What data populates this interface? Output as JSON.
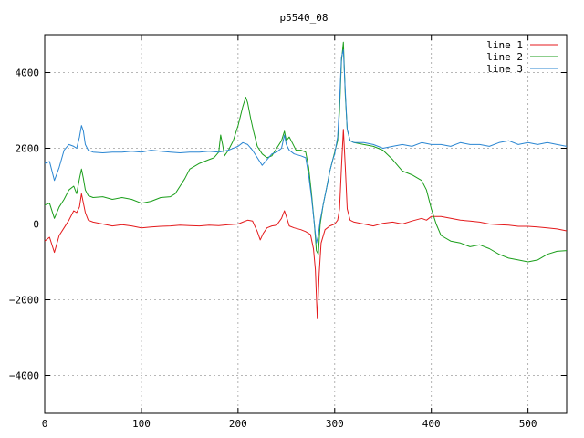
{
  "chart_data": {
    "type": "line",
    "title": "p5540_08",
    "xlabel": "",
    "ylabel": "",
    "xlim": [
      0,
      540
    ],
    "ylim": [
      -5000,
      5000
    ],
    "x_ticks": [
      0,
      100,
      200,
      300,
      400,
      500
    ],
    "y_ticks": [
      -4000,
      -2000,
      0,
      2000,
      4000
    ],
    "grid": true,
    "legend_position": "top-right",
    "series": [
      {
        "name": "line 1",
        "color": "#e41a1c",
        "points": [
          [
            0,
            -450
          ],
          [
            5,
            -350
          ],
          [
            10,
            -750
          ],
          [
            15,
            -300
          ],
          [
            20,
            -100
          ],
          [
            25,
            100
          ],
          [
            30,
            350
          ],
          [
            33,
            300
          ],
          [
            36,
            450
          ],
          [
            38,
            800
          ],
          [
            40,
            550
          ],
          [
            42,
            300
          ],
          [
            45,
            100
          ],
          [
            50,
            50
          ],
          [
            60,
            0
          ],
          [
            70,
            -50
          ],
          [
            80,
            -20
          ],
          [
            90,
            -50
          ],
          [
            100,
            -100
          ],
          [
            110,
            -80
          ],
          [
            120,
            -60
          ],
          [
            130,
            -50
          ],
          [
            140,
            -30
          ],
          [
            150,
            -40
          ],
          [
            160,
            -50
          ],
          [
            170,
            -30
          ],
          [
            180,
            -40
          ],
          [
            190,
            -20
          ],
          [
            200,
            0
          ],
          [
            205,
            50
          ],
          [
            210,
            100
          ],
          [
            215,
            80
          ],
          [
            220,
            -200
          ],
          [
            223,
            -420
          ],
          [
            226,
            -250
          ],
          [
            230,
            -100
          ],
          [
            235,
            -50
          ],
          [
            240,
            -30
          ],
          [
            245,
            150
          ],
          [
            248,
            350
          ],
          [
            250,
            200
          ],
          [
            253,
            -50
          ],
          [
            258,
            -100
          ],
          [
            265,
            -150
          ],
          [
            270,
            -200
          ],
          [
            275,
            -280
          ],
          [
            278,
            -650
          ],
          [
            280,
            -1200
          ],
          [
            282,
            -2500
          ],
          [
            284,
            -1300
          ],
          [
            286,
            -500
          ],
          [
            290,
            -150
          ],
          [
            295,
            -50
          ],
          [
            300,
            0
          ],
          [
            303,
            100
          ],
          [
            305,
            400
          ],
          [
            307,
            1500
          ],
          [
            309,
            2500
          ],
          [
            311,
            1500
          ],
          [
            313,
            400
          ],
          [
            316,
            100
          ],
          [
            320,
            50
          ],
          [
            330,
            0
          ],
          [
            340,
            -50
          ],
          [
            350,
            20
          ],
          [
            360,
            50
          ],
          [
            370,
            0
          ],
          [
            380,
            80
          ],
          [
            390,
            150
          ],
          [
            395,
            100
          ],
          [
            400,
            200
          ],
          [
            410,
            200
          ],
          [
            420,
            150
          ],
          [
            430,
            100
          ],
          [
            440,
            80
          ],
          [
            450,
            50
          ],
          [
            460,
            0
          ],
          [
            470,
            -20
          ],
          [
            480,
            -30
          ],
          [
            490,
            -60
          ],
          [
            500,
            -60
          ],
          [
            510,
            -80
          ],
          [
            520,
            -100
          ],
          [
            530,
            -130
          ],
          [
            540,
            -180
          ]
        ]
      },
      {
        "name": "line 2",
        "color": "#1a9e1a",
        "points": [
          [
            0,
            500
          ],
          [
            5,
            550
          ],
          [
            10,
            150
          ],
          [
            15,
            450
          ],
          [
            20,
            650
          ],
          [
            25,
            900
          ],
          [
            30,
            1000
          ],
          [
            33,
            800
          ],
          [
            36,
            1200
          ],
          [
            38,
            1450
          ],
          [
            40,
            1200
          ],
          [
            42,
            900
          ],
          [
            45,
            750
          ],
          [
            50,
            700
          ],
          [
            60,
            720
          ],
          [
            70,
            650
          ],
          [
            80,
            700
          ],
          [
            90,
            650
          ],
          [
            100,
            550
          ],
          [
            110,
            600
          ],
          [
            120,
            700
          ],
          [
            130,
            720
          ],
          [
            135,
            800
          ],
          [
            140,
            1000
          ],
          [
            145,
            1200
          ],
          [
            150,
            1450
          ],
          [
            160,
            1600
          ],
          [
            170,
            1700
          ],
          [
            175,
            1750
          ],
          [
            180,
            1900
          ],
          [
            182,
            2350
          ],
          [
            184,
            2100
          ],
          [
            186,
            1800
          ],
          [
            190,
            1950
          ],
          [
            195,
            2200
          ],
          [
            200,
            2600
          ],
          [
            205,
            3100
          ],
          [
            208,
            3350
          ],
          [
            210,
            3200
          ],
          [
            213,
            2800
          ],
          [
            216,
            2450
          ],
          [
            220,
            2050
          ],
          [
            225,
            1850
          ],
          [
            230,
            1750
          ],
          [
            235,
            1800
          ],
          [
            240,
            2000
          ],
          [
            245,
            2200
          ],
          [
            248,
            2450
          ],
          [
            250,
            2200
          ],
          [
            253,
            2300
          ],
          [
            256,
            2150
          ],
          [
            260,
            1950
          ],
          [
            265,
            1950
          ],
          [
            270,
            1900
          ],
          [
            273,
            1500
          ],
          [
            276,
            800
          ],
          [
            279,
            0
          ],
          [
            281,
            -700
          ],
          [
            283,
            -800
          ],
          [
            285,
            0
          ],
          [
            288,
            500
          ],
          [
            292,
            1000
          ],
          [
            295,
            1400
          ],
          [
            298,
            1700
          ],
          [
            300,
            1900
          ],
          [
            303,
            2200
          ],
          [
            305,
            3000
          ],
          [
            307,
            4300
          ],
          [
            309,
            4800
          ],
          [
            311,
            3400
          ],
          [
            313,
            2500
          ],
          [
            316,
            2200
          ],
          [
            320,
            2150
          ],
          [
            330,
            2100
          ],
          [
            340,
            2050
          ],
          [
            350,
            1950
          ],
          [
            360,
            1700
          ],
          [
            370,
            1400
          ],
          [
            380,
            1300
          ],
          [
            390,
            1150
          ],
          [
            395,
            900
          ],
          [
            400,
            400
          ],
          [
            405,
            0
          ],
          [
            410,
            -300
          ],
          [
            420,
            -450
          ],
          [
            430,
            -500
          ],
          [
            440,
            -600
          ],
          [
            450,
            -550
          ],
          [
            460,
            -650
          ],
          [
            470,
            -800
          ],
          [
            480,
            -900
          ],
          [
            490,
            -950
          ],
          [
            500,
            -1000
          ],
          [
            510,
            -950
          ],
          [
            520,
            -800
          ],
          [
            530,
            -720
          ],
          [
            540,
            -700
          ]
        ]
      },
      {
        "name": "line 3",
        "color": "#2a86d2",
        "points": [
          [
            0,
            1600
          ],
          [
            5,
            1650
          ],
          [
            10,
            1150
          ],
          [
            15,
            1500
          ],
          [
            20,
            1950
          ],
          [
            25,
            2100
          ],
          [
            30,
            2050
          ],
          [
            33,
            2000
          ],
          [
            36,
            2300
          ],
          [
            38,
            2600
          ],
          [
            40,
            2450
          ],
          [
            42,
            2100
          ],
          [
            45,
            1950
          ],
          [
            50,
            1900
          ],
          [
            60,
            1880
          ],
          [
            70,
            1900
          ],
          [
            80,
            1900
          ],
          [
            90,
            1920
          ],
          [
            100,
            1900
          ],
          [
            110,
            1950
          ],
          [
            120,
            1920
          ],
          [
            130,
            1900
          ],
          [
            140,
            1880
          ],
          [
            150,
            1900
          ],
          [
            160,
            1900
          ],
          [
            170,
            1920
          ],
          [
            180,
            1900
          ],
          [
            190,
            1950
          ],
          [
            195,
            2000
          ],
          [
            200,
            2050
          ],
          [
            205,
            2150
          ],
          [
            210,
            2100
          ],
          [
            215,
            1950
          ],
          [
            220,
            1750
          ],
          [
            225,
            1550
          ],
          [
            230,
            1700
          ],
          [
            235,
            1850
          ],
          [
            240,
            1900
          ],
          [
            245,
            2000
          ],
          [
            248,
            2350
          ],
          [
            250,
            2100
          ],
          [
            253,
            1950
          ],
          [
            258,
            1850
          ],
          [
            265,
            1800
          ],
          [
            270,
            1750
          ],
          [
            273,
            1300
          ],
          [
            276,
            700
          ],
          [
            279,
            0
          ],
          [
            281,
            -500
          ],
          [
            283,
            -300
          ],
          [
            285,
            100
          ],
          [
            288,
            500
          ],
          [
            292,
            1000
          ],
          [
            295,
            1400
          ],
          [
            298,
            1700
          ],
          [
            300,
            1850
          ],
          [
            303,
            2300
          ],
          [
            305,
            3200
          ],
          [
            307,
            4400
          ],
          [
            309,
            4600
          ],
          [
            311,
            3500
          ],
          [
            313,
            2500
          ],
          [
            316,
            2200
          ],
          [
            320,
            2150
          ],
          [
            330,
            2150
          ],
          [
            340,
            2100
          ],
          [
            350,
            2000
          ],
          [
            360,
            2050
          ],
          [
            370,
            2100
          ],
          [
            380,
            2050
          ],
          [
            390,
            2150
          ],
          [
            400,
            2100
          ],
          [
            410,
            2100
          ],
          [
            420,
            2050
          ],
          [
            430,
            2150
          ],
          [
            440,
            2100
          ],
          [
            450,
            2100
          ],
          [
            460,
            2050
          ],
          [
            470,
            2150
          ],
          [
            480,
            2200
          ],
          [
            490,
            2100
          ],
          [
            500,
            2150
          ],
          [
            510,
            2100
          ],
          [
            520,
            2150
          ],
          [
            530,
            2100
          ],
          [
            540,
            2050
          ]
        ]
      }
    ]
  }
}
